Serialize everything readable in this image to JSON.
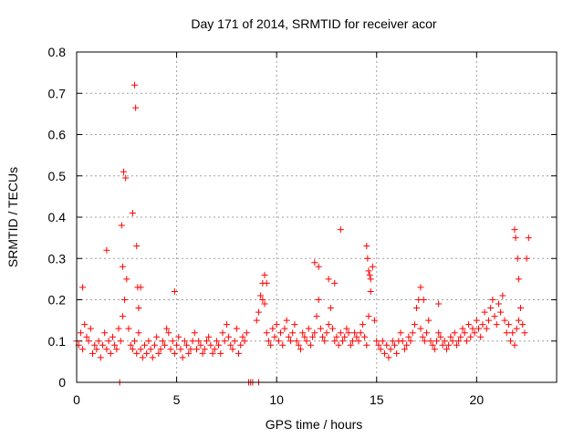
{
  "chart_data": {
    "type": "scatter",
    "title": "Day 171 of 2014, SRMTID for receiver acor",
    "xlabel": "GPS time / hours",
    "ylabel": "SRMTID / TECUs",
    "xlim": [
      0,
      24
    ],
    "ylim": [
      0,
      0.8
    ],
    "xticks": [
      0,
      5,
      10,
      15,
      20
    ],
    "yticks": [
      0,
      0.1,
      0.2,
      0.3,
      0.4,
      0.5,
      0.6,
      0.7,
      0.8
    ],
    "xtick_labels": [
      "0",
      "5",
      "10",
      "15",
      "20"
    ],
    "ytick_labels": [
      "0",
      "0.1",
      "0.2",
      "0.3",
      "0.4",
      "0.5",
      "0.6",
      "0.7",
      "0.8"
    ],
    "grid": true,
    "marker": "+",
    "color": "#ff0000",
    "series": [
      {
        "name": "SRMTID",
        "x": [
          0.0,
          0.1,
          0.2,
          0.3,
          0.4,
          0.5,
          0.6,
          0.7,
          0.8,
          0.9,
          1.0,
          1.1,
          1.2,
          1.3,
          1.4,
          1.5,
          1.6,
          1.7,
          1.8,
          1.9,
          2.0,
          2.1,
          2.2,
          2.3,
          2.4,
          2.5,
          2.6,
          2.7,
          2.8,
          2.9,
          3.0,
          3.1,
          3.2,
          3.3,
          3.4,
          3.5,
          3.6,
          3.7,
          3.8,
          3.9,
          4.0,
          4.1,
          4.2,
          4.3,
          4.4,
          4.5,
          4.6,
          4.7,
          4.8,
          4.9,
          5.0,
          5.1,
          5.2,
          5.3,
          5.4,
          5.5,
          5.6,
          5.7,
          5.8,
          5.9,
          6.0,
          6.1,
          6.2,
          6.3,
          6.4,
          6.5,
          6.6,
          6.7,
          6.8,
          6.9,
          7.0,
          7.1,
          7.2,
          7.3,
          7.4,
          7.5,
          7.6,
          7.7,
          7.8,
          7.9,
          8.0,
          8.1,
          8.2,
          8.3,
          8.4,
          8.5,
          9.0,
          9.1,
          9.2,
          9.3,
          9.4,
          9.5,
          9.6,
          9.7,
          9.8,
          9.9,
          10.0,
          10.1,
          10.2,
          10.3,
          10.4,
          10.5,
          10.6,
          10.7,
          10.8,
          10.9,
          11.0,
          11.1,
          11.2,
          11.3,
          11.4,
          11.5,
          11.6,
          11.7,
          11.8,
          11.9,
          12.0,
          12.1,
          12.2,
          12.3,
          12.4,
          12.5,
          12.6,
          12.7,
          12.8,
          12.9,
          13.0,
          13.1,
          13.2,
          13.3,
          13.4,
          13.5,
          13.6,
          13.7,
          13.8,
          13.9,
          14.0,
          14.1,
          14.2,
          14.3,
          14.4,
          14.5,
          14.6,
          14.7,
          14.8,
          14.9,
          15.0,
          15.1,
          15.2,
          15.3,
          15.4,
          15.5,
          15.6,
          15.7,
          15.8,
          15.9,
          16.0,
          16.1,
          16.2,
          16.3,
          16.4,
          16.5,
          16.6,
          16.7,
          16.8,
          16.9,
          17.0,
          17.1,
          17.2,
          17.3,
          17.4,
          17.5,
          17.6,
          17.7,
          17.8,
          17.9,
          18.0,
          18.1,
          18.2,
          18.3,
          18.4,
          18.5,
          18.6,
          18.7,
          18.8,
          18.9,
          19.0,
          19.1,
          19.2,
          19.3,
          19.4,
          19.5,
          19.6,
          19.7,
          19.8,
          19.9,
          20.0,
          20.1,
          20.2,
          20.3,
          20.4,
          20.5,
          20.6,
          20.7,
          20.8,
          20.9,
          21.0,
          21.1,
          21.2,
          21.3,
          21.4,
          21.5,
          21.6,
          21.7,
          21.8,
          21.9,
          22.0,
          22.1,
          22.2,
          22.3,
          22.4,
          22.5,
          22.6,
          2.25,
          2.3,
          2.35,
          2.45,
          2.8,
          2.9,
          2.95,
          3.0,
          3.05,
          3.1,
          3.2,
          1.5,
          11.9,
          12.1,
          12.6,
          12.9,
          13.2,
          14.5,
          14.55,
          14.6,
          14.65,
          14.7,
          17.2,
          17.35,
          18.1,
          21.9,
          21.95,
          22.05,
          22.1,
          9.3,
          9.4,
          9.5,
          0.3,
          4.9,
          8.6,
          8.7,
          8.8,
          9.1,
          2.15
        ],
        "y": [
          0.1,
          0.09,
          0.12,
          0.08,
          0.14,
          0.11,
          0.1,
          0.13,
          0.07,
          0.09,
          0.08,
          0.1,
          0.06,
          0.09,
          0.12,
          0.08,
          0.1,
          0.07,
          0.11,
          0.09,
          0.08,
          0.13,
          0.1,
          0.16,
          0.2,
          0.25,
          0.13,
          0.09,
          0.08,
          0.1,
          0.07,
          0.12,
          0.08,
          0.06,
          0.09,
          0.07,
          0.1,
          0.08,
          0.06,
          0.09,
          0.11,
          0.07,
          0.08,
          0.1,
          0.09,
          0.13,
          0.12,
          0.08,
          0.1,
          0.07,
          0.09,
          0.11,
          0.08,
          0.06,
          0.1,
          0.09,
          0.07,
          0.08,
          0.1,
          0.12,
          0.08,
          0.1,
          0.09,
          0.07,
          0.08,
          0.1,
          0.11,
          0.09,
          0.07,
          0.08,
          0.1,
          0.09,
          0.07,
          0.12,
          0.1,
          0.14,
          0.11,
          0.09,
          0.08,
          0.1,
          0.13,
          0.07,
          0.09,
          0.11,
          0.1,
          0.12,
          0.15,
          0.17,
          0.21,
          0.24,
          0.19,
          0.12,
          0.1,
          0.09,
          0.13,
          0.11,
          0.14,
          0.1,
          0.12,
          0.09,
          0.13,
          0.15,
          0.11,
          0.1,
          0.12,
          0.14,
          0.1,
          0.09,
          0.08,
          0.12,
          0.11,
          0.1,
          0.13,
          0.09,
          0.11,
          0.12,
          0.16,
          0.2,
          0.13,
          0.11,
          0.1,
          0.12,
          0.14,
          0.18,
          0.13,
          0.1,
          0.11,
          0.09,
          0.12,
          0.1,
          0.11,
          0.13,
          0.12,
          0.09,
          0.1,
          0.12,
          0.11,
          0.1,
          0.12,
          0.14,
          0.11,
          0.09,
          0.16,
          0.22,
          0.28,
          0.15,
          0.1,
          0.09,
          0.08,
          0.1,
          0.07,
          0.09,
          0.06,
          0.08,
          0.1,
          0.09,
          0.07,
          0.1,
          0.12,
          0.1,
          0.08,
          0.09,
          0.11,
          0.1,
          0.12,
          0.14,
          0.18,
          0.2,
          0.13,
          0.11,
          0.1,
          0.12,
          0.15,
          0.1,
          0.09,
          0.08,
          0.1,
          0.12,
          0.11,
          0.09,
          0.1,
          0.08,
          0.09,
          0.11,
          0.1,
          0.12,
          0.09,
          0.1,
          0.11,
          0.13,
          0.12,
          0.1,
          0.14,
          0.11,
          0.13,
          0.12,
          0.15,
          0.13,
          0.11,
          0.14,
          0.17,
          0.13,
          0.15,
          0.18,
          0.2,
          0.16,
          0.14,
          0.19,
          0.17,
          0.21,
          0.15,
          0.12,
          0.14,
          0.1,
          0.12,
          0.09,
          0.13,
          0.15,
          0.18,
          0.14,
          0.12,
          0.3,
          0.35,
          0.38,
          0.28,
          0.51,
          0.495,
          0.41,
          0.72,
          0.665,
          0.33,
          0.23,
          0.18,
          0.23,
          0.32,
          0.29,
          0.28,
          0.25,
          0.24,
          0.37,
          0.33,
          0.3,
          0.27,
          0.26,
          0.25,
          0.23,
          0.2,
          0.19,
          0.37,
          0.35,
          0.3,
          0.25,
          0.2,
          0.26,
          0.24,
          0.23,
          0.22,
          0.0,
          0.0,
          0.0,
          0.0,
          0.0
        ]
      }
    ]
  }
}
